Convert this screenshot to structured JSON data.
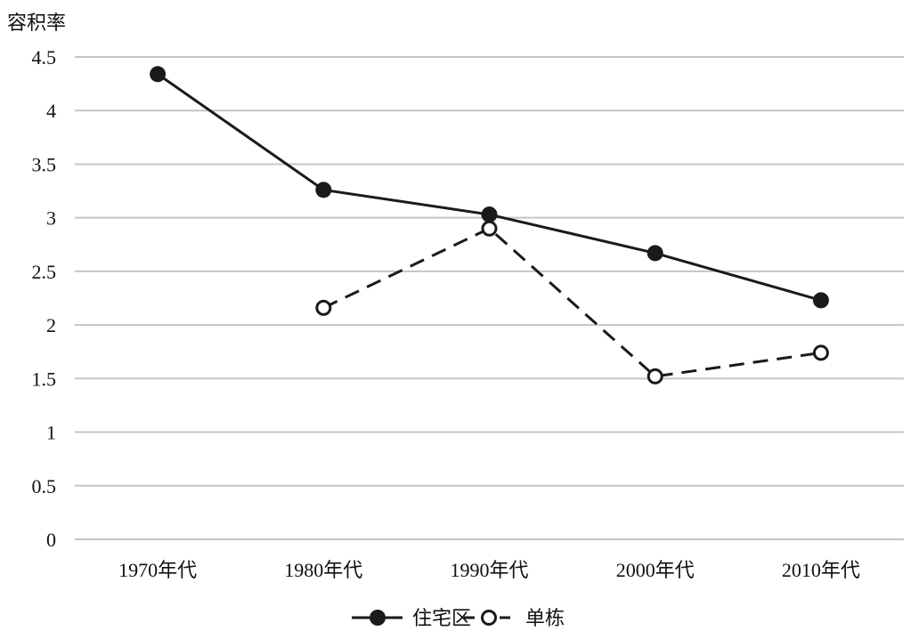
{
  "chart_data": {
    "type": "line",
    "title": "",
    "xlabel": "",
    "ylabel": "容积率",
    "ylim": [
      0,
      4.5
    ],
    "y_ticks": [
      0,
      0.5,
      1,
      1.5,
      2,
      2.5,
      3,
      3.5,
      4,
      4.5
    ],
    "y_tick_labels": [
      "0",
      "0.5",
      "1",
      "1.5",
      "2",
      "2.5",
      "3",
      "3.5",
      "4",
      "4.5"
    ],
    "categories": [
      "1970年代",
      "1980年代",
      "1990年代",
      "2000年代",
      "2010年代"
    ],
    "grid": true,
    "legend_position": "bottom",
    "series": [
      {
        "name": "住宅区",
        "values": [
          4.34,
          3.26,
          3.03,
          2.67,
          2.23
        ],
        "line_style": "solid",
        "marker": "filled-circle",
        "color": "#1a1a1a"
      },
      {
        "name": "单栋",
        "values": [
          null,
          2.16,
          2.9,
          1.52,
          1.74
        ],
        "line_style": "dashed",
        "marker": "open-circle",
        "color": "#1a1a1a"
      }
    ]
  }
}
